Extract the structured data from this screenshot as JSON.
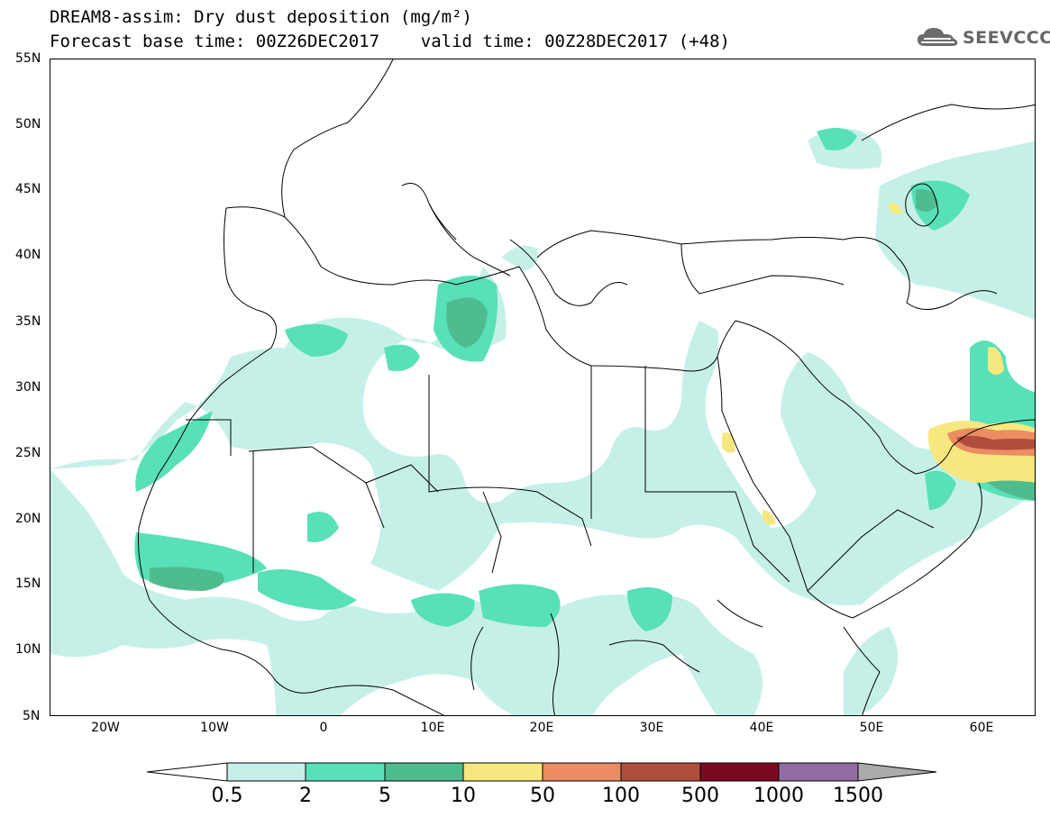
{
  "title": {
    "line1": "DREAM8-assim: Dry dust deposition (mg/m²)",
    "line2": "Forecast base time: 00Z26DEC2017    valid time: 00Z28DEC2017 (+48)"
  },
  "logo": {
    "text": "SEEVCCC",
    "icon": "cloud-icon"
  },
  "axes": {
    "lat_labels": [
      "55N",
      "50N",
      "45N",
      "40N",
      "35N",
      "30N",
      "25N",
      "20N",
      "15N",
      "10N",
      "5N"
    ],
    "lon_labels": [
      "20W",
      "10W",
      "0",
      "10E",
      "20E",
      "30E",
      "40E",
      "50E",
      "60E"
    ],
    "lat_range": [
      5,
      55
    ],
    "lon_range": [
      -25,
      65
    ]
  },
  "colorbar": {
    "labels": [
      "0.5",
      "2",
      "5",
      "10",
      "50",
      "100",
      "500",
      "1000",
      "1500"
    ],
    "colors": [
      "#c5f0e8",
      "#58e0b8",
      "#4ebc8e",
      "#f6e87e",
      "#eb8c62",
      "#b04e3e",
      "#7a0a24",
      "#906ca2",
      "#aaaaaa"
    ]
  }
}
